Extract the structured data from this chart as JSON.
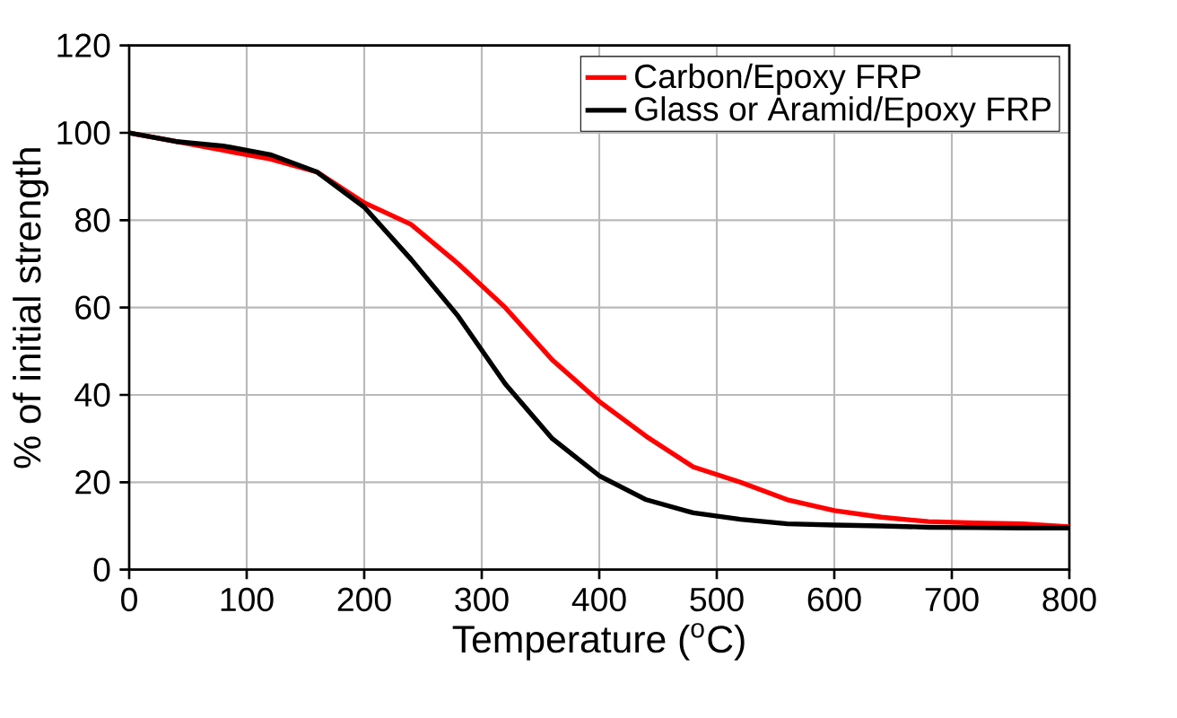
{
  "chart_data": {
    "type": "line",
    "xlabel": "Temperature ($^{o}$C)",
    "ylabel": "% of initial strength",
    "x": [
      0,
      40,
      80,
      120,
      160,
      200,
      240,
      280,
      320,
      360,
      400,
      440,
      480,
      520,
      560,
      600,
      640,
      680,
      720,
      760,
      800
    ],
    "series": [
      {
        "name": "Carbon/Epoxy FRP",
        "color": "#ff0000",
        "values": [
          100,
          98,
          96,
          94,
          91,
          84,
          79,
          70,
          60,
          48,
          38.5,
          30.5,
          23.5,
          20,
          16,
          13.5,
          12,
          11,
          10.7,
          10.5,
          9.8
        ]
      },
      {
        "name": "Glass or Aramid/Epoxy FRP",
        "color": "#000000",
        "values": [
          100,
          98,
          97,
          95,
          91,
          83,
          71,
          58,
          42.5,
          30,
          21.5,
          16,
          13,
          11.5,
          10.5,
          10.2,
          10,
          9.7,
          9.6,
          9.5,
          9.5
        ]
      }
    ],
    "xlim": [
      0,
      800
    ],
    "ylim": [
      0,
      120
    ],
    "xticks": [
      0,
      100,
      200,
      300,
      400,
      500,
      600,
      700,
      800
    ],
    "yticks": [
      0,
      20,
      40,
      60,
      80,
      100,
      120
    ],
    "grid": true,
    "legend": "top right",
    "marker": "none",
    "line_style": "solid"
  }
}
